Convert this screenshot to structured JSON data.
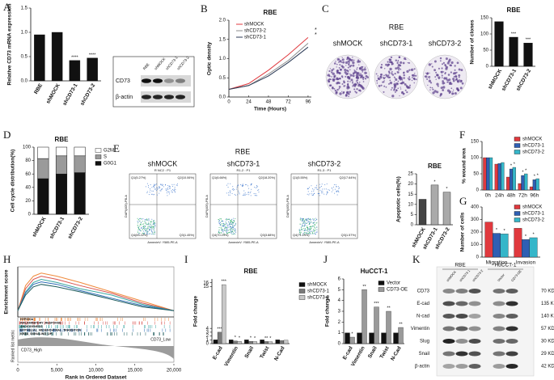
{
  "panel_labels": [
    "A",
    "B",
    "C",
    "D",
    "E",
    "F",
    "G",
    "H",
    "I",
    "J",
    "K"
  ],
  "blot_a": {
    "lanes": [
      "RBE",
      "shMOCK",
      "shCD73-1",
      "shCD73-2"
    ],
    "rows": [
      "CD73",
      "β-actin"
    ]
  },
  "colony": {
    "title": "RBE",
    "labels": [
      "shMOCK",
      "shCD73-1",
      "shCD73-2"
    ]
  },
  "flow": {
    "title": "RBE",
    "xlabel": "AnnexinV: Y585-PE-A",
    "ylabel": "DAPI(405)-PB-A",
    "plots": [
      {
        "label": "shMOCK",
        "header": "R NC2 : P1",
        "quadrants": [
          "Q1(5.27%)",
          "Q2(10.06%)",
          "Q4(83.22%)",
          "Q3(1.45%)"
        ]
      },
      {
        "label": "shCD73-1",
        "header": "R1-2 : P1",
        "quadrants": [
          "Q1(6.66%)",
          "Q2(18.20%)",
          "Q4(70.23%)",
          "Q3(3.88%)"
        ]
      },
      {
        "label": "shCD73-2",
        "header": "R1-3 : P1",
        "quadrants": [
          "Q1(5.55%)",
          "Q2(17.64%)",
          "Q4(71.24%)",
          "Q3(1.57%)"
        ]
      }
    ]
  },
  "blot_k": {
    "groups": [
      "RBE",
      "HuCCT-1"
    ],
    "lanes": [
      "shMOCK",
      "shCD73-1",
      "shCD73-2",
      "Vector",
      "CD73-OE"
    ],
    "rows": [
      {
        "name": "CD73",
        "size": "70 KD"
      },
      {
        "name": "E-cad",
        "size": "135 KD"
      },
      {
        "name": "N-cad",
        "size": "140 KD"
      },
      {
        "name": "Vimentin",
        "size": "57 KD"
      },
      {
        "name": "Slug",
        "size": "30 KD"
      },
      {
        "name": "Snail",
        "size": "29 KD"
      },
      {
        "name": "β-actin",
        "size": "42 KD"
      }
    ]
  },
  "chart_data": [
    {
      "type": "bar",
      "ylabel": "Relative CD73 mRNA expression",
      "categories": [
        "RBE",
        "shMOCK",
        "shCD73-1",
        "shCD73-2"
      ],
      "values": [
        0.95,
        1.0,
        0.42,
        0.47
      ],
      "color": "#111111",
      "ylim": [
        0,
        1.5
      ],
      "yticks": [
        {
          "value": 0,
          "label": "0.0"
        },
        {
          "value": 0.5,
          "label": "0.5"
        },
        {
          "value": 1,
          "label": "1.0"
        },
        {
          "value": 1.5,
          "label": "1.5"
        }
      ],
      "annotations": [
        null,
        null,
        "****",
        "****"
      ]
    },
    {
      "type": "line",
      "title": "RBE",
      "xlabel": "Time (Hours)",
      "ylabel": "Optic density",
      "x": [
        0,
        24,
        48,
        72,
        96
      ],
      "xlim": [
        0,
        100
      ],
      "xticks": [
        0,
        24,
        48,
        72,
        96
      ],
      "ylim": [
        0,
        2
      ],
      "yticks": [
        {
          "value": 0,
          "label": "0.0"
        },
        {
          "value": 0.5,
          "label": "0.5"
        },
        {
          "value": 1,
          "label": "1.0"
        },
        {
          "value": 1.5,
          "label": "1.5"
        },
        {
          "value": 2,
          "label": "2.0"
        }
      ],
      "series": [
        {
          "name": "shMOCK",
          "color": "#e0393e",
          "values": [
            0.2,
            0.35,
            0.7,
            1.1,
            1.55
          ]
        },
        {
          "name": "shCD73-2",
          "color": "#8c8c8c",
          "values": [
            0.2,
            0.3,
            0.6,
            0.95,
            1.4
          ]
        },
        {
          "name": "shCD73-1",
          "color": "#2b3a55",
          "values": [
            0.2,
            0.3,
            0.55,
            0.9,
            1.3
          ]
        }
      ],
      "annotations": [
        "*",
        "*"
      ]
    },
    {
      "type": "bar",
      "title": "RBE",
      "ylabel": "Number of clones",
      "categories": [
        "shMOCK",
        "shCD73-1",
        "shCD73-2"
      ],
      "values": [
        138,
        90,
        72
      ],
      "color": "#111111",
      "ylim": [
        0,
        150
      ],
      "yticks": [
        0,
        50,
        100,
        150
      ],
      "annotations": [
        null,
        "***",
        "***"
      ]
    },
    {
      "type": "stacked_bar",
      "title": "RBE",
      "ylabel": "Cell cycle distribution(%)",
      "categories": [
        "shMOCK",
        "shCD73-1",
        "shCD73-2"
      ],
      "ylim": [
        0,
        100
      ],
      "yticks": [
        0,
        20,
        40,
        60,
        80,
        100
      ],
      "series": [
        {
          "name": "G0G1",
          "color": "#111111",
          "values": [
            53,
            60,
            62
          ]
        },
        {
          "name": "S",
          "color": "#9a9a9a",
          "values": [
            30,
            27,
            25
          ]
        },
        {
          "name": "G2M",
          "color": "#ffffff",
          "values": [
            17,
            13,
            13
          ]
        }
      ]
    },
    {
      "type": "bar",
      "title": "RBE",
      "ylabel": "Apoptotic cells(%)",
      "categories": [
        "shMOCK",
        "shCD73-1",
        "shCD73-2"
      ],
      "values": [
        12.5,
        19.5,
        16
      ],
      "colors": [
        "#444444",
        "#aaaaaa",
        "#aaaaaa"
      ],
      "ylim": [
        0,
        25
      ],
      "yticks": [
        0,
        5,
        10,
        15,
        20,
        25
      ],
      "annotations": [
        null,
        "*",
        "*"
      ]
    },
    {
      "type": "bar",
      "ylabel": "% wound area",
      "categories": [
        "0h",
        "24h",
        "48h",
        "72h",
        "96h"
      ],
      "ylim": [
        0,
        150
      ],
      "yticks": [
        0,
        50,
        100,
        150
      ],
      "series": [
        {
          "name": "shMOCK",
          "color": "#e0393e",
          "values": [
            100,
            80,
            40,
            20,
            10
          ]
        },
        {
          "name": "shCD73-1",
          "color": "#2f5fb3",
          "values": [
            100,
            82,
            65,
            45,
            32
          ],
          "annotations": [
            null,
            null,
            "*",
            "*",
            "*"
          ]
        },
        {
          "name": "shCD73-2",
          "color": "#35b6c9",
          "values": [
            100,
            85,
            70,
            50,
            35
          ],
          "annotations": [
            null,
            null,
            "*",
            "*",
            "*"
          ]
        }
      ]
    },
    {
      "type": "bar",
      "ylabel": "Number of cells",
      "categories": [
        "Migration",
        "Invasion"
      ],
      "ylim": [
        0,
        400
      ],
      "yticks": [
        0,
        100,
        200,
        300,
        400
      ],
      "series": [
        {
          "name": "shMOCK",
          "color": "#e0393e",
          "values": [
            280,
            230
          ]
        },
        {
          "name": "shCD73-1",
          "color": "#2f5fb3",
          "values": [
            190,
            140
          ],
          "annotations": [
            "*",
            "*"
          ]
        },
        {
          "name": "shCD73-2",
          "color": "#35b6c9",
          "values": [
            185,
            155
          ],
          "annotations": [
            "*",
            "*"
          ]
        }
      ]
    },
    {
      "type": "line",
      "ylabel": "Enrichment score",
      "xlabel": "Rank in Ordered Dataset",
      "metric_label": "Ranked list metric",
      "high_label": "CD73_High",
      "low_label": "CD73_Low",
      "x": [
        0,
        1000,
        2000,
        3000,
        5000,
        8000,
        12000,
        16000,
        20000
      ],
      "xlim": [
        0,
        20000
      ],
      "xticks": [
        0,
        {
          "value": 5000,
          "label": "5,000"
        },
        {
          "value": 10000,
          "label": "10,000"
        },
        {
          "value": 15000,
          "label": "15,000"
        },
        {
          "value": 20000,
          "label": "20,000"
        }
      ],
      "ylim": [
        -0.1,
        0.7
      ],
      "series": [
        {
          "name": "HYPOXIA",
          "color": "#f08a3c",
          "values": [
            0,
            0.4,
            0.55,
            0.6,
            0.55,
            0.45,
            0.3,
            0.15,
            0
          ]
        },
        {
          "name": "INFLAMMATORY_RESPONSE",
          "color": "#d9534f",
          "values": [
            0,
            0.35,
            0.5,
            0.55,
            0.5,
            0.4,
            0.28,
            0.12,
            0
          ]
        },
        {
          "name": "ANGIOGENESIS",
          "color": "#3aa6a0",
          "values": [
            0,
            0.3,
            0.45,
            0.5,
            0.45,
            0.35,
            0.25,
            0.1,
            0
          ]
        },
        {
          "name": "EPITHELIAL_MESENCHYMAL_TRANSITION",
          "color": "#2f6db5",
          "values": [
            0,
            0.28,
            0.42,
            0.46,
            0.42,
            0.32,
            0.2,
            0.08,
            0
          ]
        },
        {
          "name": "KRAS_SIGNALING_UP",
          "color": "#1d5c5c",
          "values": [
            0,
            0.25,
            0.38,
            0.42,
            0.38,
            0.3,
            0.18,
            0.06,
            0
          ]
        }
      ]
    },
    {
      "type": "bar",
      "title": "RBE",
      "ylabel": "Fold change",
      "categories": [
        "E-cad",
        "Vimentin",
        "Snail",
        "Twist",
        "N-Cad"
      ],
      "ylim": [
        0,
        17
      ],
      "yticks": [
        0,
        1,
        2,
        3,
        4,
        15,
        16
      ],
      "series": [
        {
          "name": "shMOCK",
          "color": "#111111",
          "values": [
            1,
            1,
            1,
            1,
            1
          ]
        },
        {
          "name": "shCD73-1",
          "color": "#7a7a7a",
          "values": [
            3,
            0.7,
            0.6,
            0.55,
            0.8
          ],
          "annotations": [
            "***",
            "*",
            "*",
            "**",
            null
          ]
        },
        {
          "name": "shCD73-2",
          "color": "#c8c8c8",
          "values": [
            15.5,
            0.6,
            0.55,
            0.5,
            0.9
          ],
          "annotations": [
            "***",
            "*",
            "*",
            "*",
            null
          ]
        }
      ]
    },
    {
      "type": "bar",
      "title": "HuCCT-1",
      "ylabel": "Fold change",
      "categories": [
        "E-cad",
        "Vimentin",
        "Snail",
        "Twist",
        "N-Cad"
      ],
      "ylim": [
        0,
        6
      ],
      "yticks": [
        0,
        1,
        2,
        3,
        4,
        5,
        6
      ],
      "series": [
        {
          "name": "Vector",
          "color": "#111111",
          "values": [
            1,
            1,
            1,
            1,
            1
          ]
        },
        {
          "name": "CD73-OE",
          "color": "#9a9a9a",
          "values": [
            0.6,
            5,
            3.4,
            3,
            1.5
          ],
          "annotations": [
            "*",
            "**",
            "***",
            "**",
            "**"
          ]
        }
      ]
    }
  ]
}
